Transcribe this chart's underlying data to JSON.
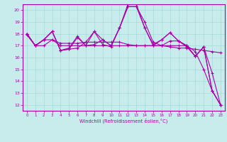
{
  "xlabel": "Windchill (Refroidissement éolien,°C)",
  "xlim": [
    -0.5,
    23.5
  ],
  "ylim": [
    11.5,
    20.5
  ],
  "yticks": [
    12,
    13,
    14,
    15,
    16,
    17,
    18,
    19,
    20
  ],
  "xticks": [
    0,
    1,
    2,
    3,
    4,
    5,
    6,
    7,
    8,
    9,
    10,
    11,
    12,
    13,
    14,
    15,
    16,
    17,
    18,
    19,
    20,
    21,
    22,
    23
  ],
  "bg_color": "#c8ecec",
  "grid_color": "#a8d8d8",
  "line_color": "#aa00aa",
  "series": [
    [
      18.0,
      17.0,
      17.5,
      18.2,
      16.6,
      16.7,
      16.8,
      17.3,
      18.2,
      17.1,
      16.9,
      18.5,
      20.3,
      20.3,
      18.5,
      17.1,
      17.5,
      18.1,
      17.4,
      16.9,
      16.1,
      16.9,
      13.2,
      12.0
    ],
    [
      17.9,
      17.0,
      17.5,
      18.2,
      16.6,
      16.7,
      17.7,
      17.0,
      17.1,
      17.5,
      17.0,
      18.5,
      20.5,
      20.5,
      18.5,
      17.0,
      17.5,
      18.1,
      17.4,
      17.0,
      16.1,
      16.9,
      14.7,
      12.0
    ],
    [
      18.0,
      17.0,
      17.5,
      18.2,
      16.6,
      16.8,
      17.8,
      17.0,
      18.2,
      17.5,
      17.0,
      18.5,
      20.3,
      20.3,
      19.0,
      17.3,
      17.0,
      17.4,
      17.4,
      17.0,
      16.1,
      16.9,
      13.2,
      12.0
    ],
    [
      18.0,
      17.0,
      17.5,
      17.5,
      17.2,
      17.2,
      17.2,
      17.3,
      17.3,
      17.3,
      17.3,
      17.3,
      17.1,
      17.0,
      17.0,
      17.0,
      17.0,
      16.9,
      16.8,
      16.8,
      16.7,
      16.6,
      16.5,
      16.4
    ],
    [
      18.0,
      17.0,
      17.0,
      17.5,
      17.0,
      17.0,
      17.0,
      17.0,
      17.0,
      17.0,
      17.0,
      17.0,
      17.0,
      17.0,
      17.0,
      17.0,
      17.0,
      17.0,
      17.0,
      17.0,
      16.5,
      15.0,
      13.2,
      12.0
    ]
  ]
}
